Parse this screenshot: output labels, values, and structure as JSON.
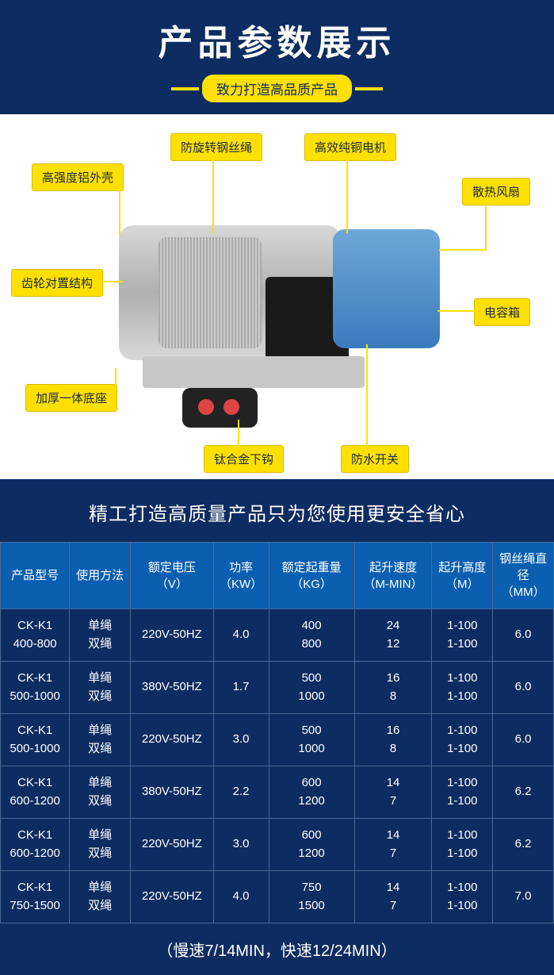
{
  "header": {
    "title": "产品参数展示",
    "subtitle": "致力打造高品质产品"
  },
  "diagram": {
    "labels": {
      "top_left": "高强度铝外壳",
      "top_mid": "防旋转钢丝绳",
      "top_right": "高效纯铜电机",
      "right_upper": "散热风扇",
      "left_mid": "齿轮对置结构",
      "right_mid": "电容箱",
      "bottom_left": "加厚一体底座",
      "bottom_mid": "钛合金下钩",
      "bottom_right": "防水开关"
    }
  },
  "tagline": "精工打造高质量产品只为您使用更安全省心",
  "table": {
    "columns": [
      "产品型号",
      "使用方法",
      "额定电压\n（V）",
      "功率\n（KW）",
      "额定起重量\n（KG）",
      "起升速度\n（M-MIN）",
      "起升高度\n（M）",
      "钢丝绳直径\n（MM）"
    ],
    "col_widths": [
      "12.5%",
      "11%",
      "15%",
      "10%",
      "15.5%",
      "14%",
      "11%",
      "11%"
    ],
    "rows": [
      [
        "CK-K1\n400-800",
        "单绳\n双绳",
        "220V-50HZ",
        "4.0",
        "400\n800",
        "24\n12",
        "1-100\n1-100",
        "6.0"
      ],
      [
        "CK-K1\n500-1000",
        "单绳\n双绳",
        "380V-50HZ",
        "1.7",
        "500\n1000",
        "16\n8",
        "1-100\n1-100",
        "6.0"
      ],
      [
        "CK-K1\n500-1000",
        "单绳\n双绳",
        "220V-50HZ",
        "3.0",
        "500\n1000",
        "16\n8",
        "1-100\n1-100",
        "6.0"
      ],
      [
        "CK-K1\n600-1200",
        "单绳\n双绳",
        "380V-50HZ",
        "2.2",
        "600\n1200",
        "14\n7",
        "1-100\n1-100",
        "6.2"
      ],
      [
        "CK-K1\n600-1200",
        "单绳\n双绳",
        "220V-50HZ",
        "3.0",
        "600\n1200",
        "14\n7",
        "1-100\n1-100",
        "6.2"
      ],
      [
        "CK-K1\n750-1500",
        "单绳\n双绳",
        "220V-50HZ",
        "4.0",
        "750\n1500",
        "14\n7",
        "1-100\n1-100",
        "7.0"
      ]
    ]
  },
  "footnote": "（慢速7/14MIN，快速12/24MIN）",
  "styles": {
    "header_bg": "#0d2c61",
    "accent": "#ffe000",
    "table_header_bg": "#0b5fb0",
    "table_border": "#4a6a95",
    "text_light": "#ffffff"
  }
}
